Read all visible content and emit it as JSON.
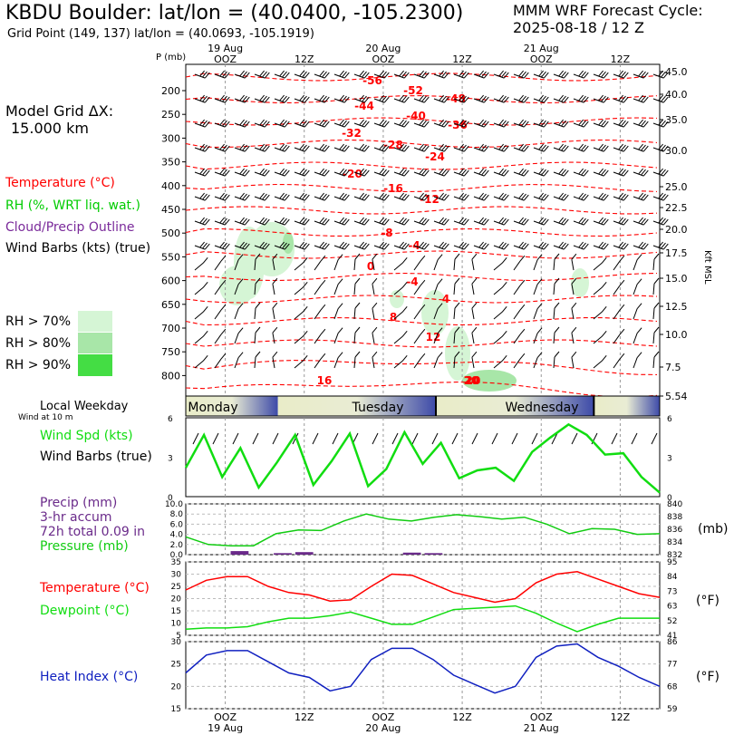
{
  "header": {
    "title": "KBDU Boulder:  lat/lon = (40.0400, -105.2300)",
    "grid_point": "Grid Point (149, 137) lat/lon = (40.0693, -105.1919)",
    "model": "MMM WRF Forecast Cycle:",
    "cycle": "2025-08-18 / 12  Z"
  },
  "model_grid": {
    "label": "Model Grid ΔX:",
    "value": "15.000 km"
  },
  "legend": {
    "temperature": "Temperature (°C)",
    "rh": "RH (%, WRT liq. wat.)",
    "cloud": "Cloud/Precip Outline",
    "wind_barbs": "Wind Barbs (kts) (true)",
    "rh70": "RH > 70%",
    "rh80": "RH > 80%",
    "rh90": "RH > 90%"
  },
  "colors": {
    "temperature": "#ff0000",
    "rh": "#00cc00",
    "cloud": "#7a2a9a",
    "rh70": "#d5f5d5",
    "rh80": "#a8e6a8",
    "rh90": "#44dd44",
    "wind_spd": "#11dd11",
    "pressure": "#11cc11",
    "precip": "#6a2a8a",
    "dewpoint": "#11dd11",
    "heat_index": "#1020c0"
  },
  "panel_labels": {
    "weekday": "Local Weekday",
    "wind_note": "Wind at 10 m",
    "wind_spd": "Wind Spd (kts)",
    "wind_barbs": "Wind Barbs (true)",
    "precip": "Precip (mm)",
    "accum": "3-hr accum",
    "total": "72h total 0.09 in",
    "pressure": "Pressure (mb)",
    "pressure_right": "(mb)",
    "temperature": "Temperature (°C)",
    "dewpoint": "Dewpoint (°C)",
    "temp_right": "(°F)",
    "heat_index": "Heat Index (°C)",
    "heat_right": "(°F)",
    "kft": "Kft MSL",
    "p_axis": "P (mb)"
  },
  "chart_data": [
    {
      "type": "line",
      "name": "cross-section",
      "x_top_labels": [
        {
          "t": 6,
          "day": "19 Aug",
          "hr": "OOZ"
        },
        {
          "t": 18,
          "day": "",
          "hr": "12Z"
        },
        {
          "t": 30,
          "day": "20 Aug",
          "hr": "OOZ"
        },
        {
          "t": 42,
          "day": "",
          "hr": "12Z"
        },
        {
          "t": 54,
          "day": "21 Aug",
          "hr": "OOZ"
        },
        {
          "t": 66,
          "day": "",
          "hr": "12Z"
        }
      ],
      "p_ticks": [
        "200",
        "250",
        "300",
        "350",
        "400",
        "450",
        "500",
        "550",
        "600",
        "650",
        "700",
        "750",
        "800"
      ],
      "height_ticks": [
        "45.0",
        "40.0",
        "35.0",
        "30.0",
        "25.0",
        "22.5",
        "20.0",
        "17.5",
        "15.0",
        "12.5",
        "10.0",
        "7.5",
        "5.54"
      ],
      "temp_labels": [
        "-56",
        "-52",
        "-48",
        "-44",
        "-40",
        "-36",
        "-32",
        "-28",
        "-24",
        "-20",
        "-16",
        "-12",
        "-8",
        "-4",
        "0",
        "-4",
        "4",
        "8",
        "12",
        "16",
        "20",
        "20"
      ]
    },
    {
      "type": "line",
      "name": "weekday",
      "days": [
        "Monday",
        "Tuesday",
        "Wednesday"
      ]
    },
    {
      "type": "line",
      "name": "wind_speed",
      "ylim": [
        0,
        6
      ],
      "yticks": [
        "0",
        "3",
        "6"
      ],
      "values": [
        2.2,
        4.7,
        1.5,
        3.7,
        0.7,
        2.6,
        4.7,
        0.9,
        2.7,
        4.8,
        0.8,
        2.1,
        4.9,
        2.5,
        4.1,
        1.4,
        2.0,
        2.2,
        1.2,
        3.4,
        4.5,
        5.5,
        4.7,
        3.2,
        3.3,
        1.5,
        0.3
      ]
    },
    {
      "type": "line",
      "name": "precip_pressure",
      "precip_ylim": [
        0,
        10
      ],
      "precip_yticks": [
        "0.0",
        "2.0",
        "4.0",
        "6.0",
        "8.0",
        "10.0"
      ],
      "pressure_ylim": [
        832,
        840
      ],
      "pressure_yticks": [
        "832",
        "834",
        "836",
        "838",
        "840"
      ],
      "pressure": [
        834.8,
        833.6,
        833.4,
        833.4,
        835.3,
        835.9,
        835.8,
        837.3,
        838.4,
        837.6,
        837.3,
        837.9,
        838.3,
        838.0,
        837.6,
        837.9,
        836.8,
        835.3,
        836.1,
        836.0,
        835.2,
        835.3
      ],
      "precip": [
        0,
        0,
        0.7,
        0,
        0.3,
        0.5,
        0,
        0,
        0,
        0,
        0.4,
        0.3,
        0,
        0,
        0,
        0,
        0,
        0,
        0,
        0,
        0,
        0
      ]
    },
    {
      "type": "line",
      "name": "temperature_dewpoint",
      "ylim": [
        5,
        35
      ],
      "yticks": [
        "5",
        "10",
        "15",
        "20",
        "25",
        "30",
        "35"
      ],
      "f_ticks": [
        "41",
        "52",
        "63",
        "73",
        "84",
        "95"
      ],
      "temperature": [
        23.5,
        27.5,
        29,
        29,
        25,
        22.5,
        21.5,
        19,
        19.5,
        25,
        30,
        29.5,
        26,
        22.5,
        20.5,
        18.5,
        20,
        26.5,
        30,
        31,
        28,
        25,
        22,
        20.5
      ],
      "dewpoint": [
        7.5,
        8,
        8,
        8.5,
        10.5,
        12,
        12,
        13,
        14.5,
        12,
        9.5,
        9.5,
        12.5,
        15.5,
        16,
        16.5,
        17,
        14,
        10,
        6.5,
        9.5,
        12,
        12,
        12
      ]
    },
    {
      "type": "line",
      "name": "heat_index",
      "ylim": [
        15,
        30
      ],
      "yticks": [
        "15",
        "20",
        "25",
        "30"
      ],
      "f_ticks": [
        "59",
        "68",
        "77",
        "86"
      ],
      "values": [
        23,
        27,
        28,
        28,
        25.5,
        23,
        22,
        19,
        20,
        26,
        28.5,
        28.5,
        26,
        22.5,
        20.5,
        18.5,
        20,
        26.5,
        29,
        29.5,
        26.5,
        24.5,
        22,
        20
      ],
      "x_bottom_labels": [
        {
          "t": 6,
          "day": "19 Aug",
          "hr": "OOZ"
        },
        {
          "t": 18,
          "day": "",
          "hr": "12Z"
        },
        {
          "t": 30,
          "day": "20 Aug",
          "hr": "OOZ"
        },
        {
          "t": 42,
          "day": "",
          "hr": "12Z"
        },
        {
          "t": 54,
          "day": "21 Aug",
          "hr": "OOZ"
        },
        {
          "t": 66,
          "day": "",
          "hr": "12Z"
        }
      ]
    }
  ]
}
